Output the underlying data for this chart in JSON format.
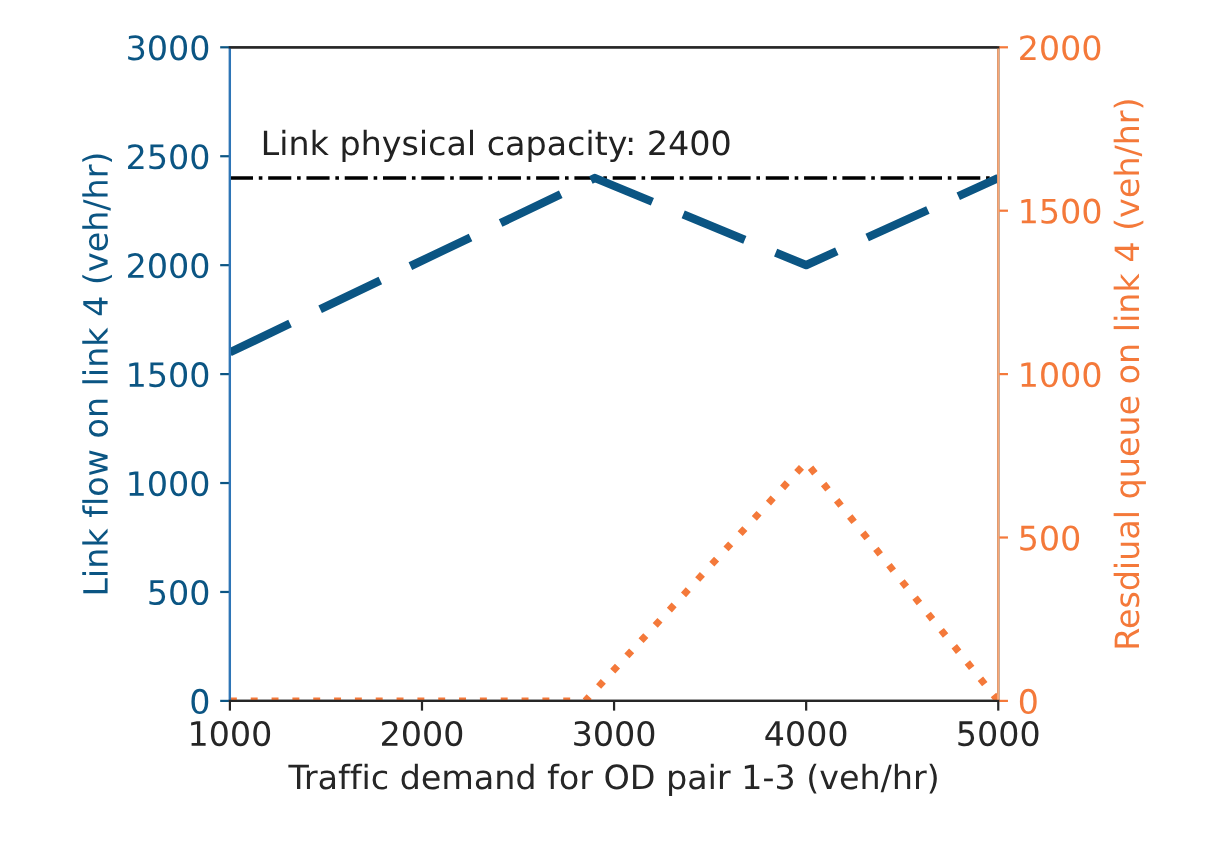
{
  "chart_data": {
    "type": "line",
    "xlabel": "Traffic demand for OD pair 1-3 (veh/hr)",
    "ylabel": "Link flow on link 4 (veh/hr)",
    "y2label": "Resdiual queue on link 4 (veh/hr)",
    "xlim": [
      1000,
      5000
    ],
    "xticks": [
      1000,
      2000,
      3000,
      4000,
      5000
    ],
    "ylim": [
      0,
      3000
    ],
    "yticks": [
      0,
      500,
      1000,
      1500,
      2000,
      2500,
      3000
    ],
    "y2lim": [
      0,
      2000
    ],
    "y2ticks": [
      0,
      500,
      1000,
      1500,
      2000
    ],
    "grid": false,
    "legend": false,
    "series": [
      {
        "x": [
          1000,
          2900,
          4000,
          5000
        ],
        "values": [
          1600,
          2400,
          2000,
          2400
        ],
        "color": "#0b5583",
        "line_style": "dashed"
      },
      {
        "x": [
          1000,
          2850,
          4000,
          5000
        ],
        "values": [
          0,
          0,
          730,
          0
        ],
        "color": "#f4793a",
        "line_style": "dotted",
        "axis": "y2"
      }
    ],
    "ref_lines": [
      {
        "axis": "y",
        "value": 2400,
        "label": "Link physical capacity: 2400",
        "color": "#000000"
      }
    ]
  }
}
